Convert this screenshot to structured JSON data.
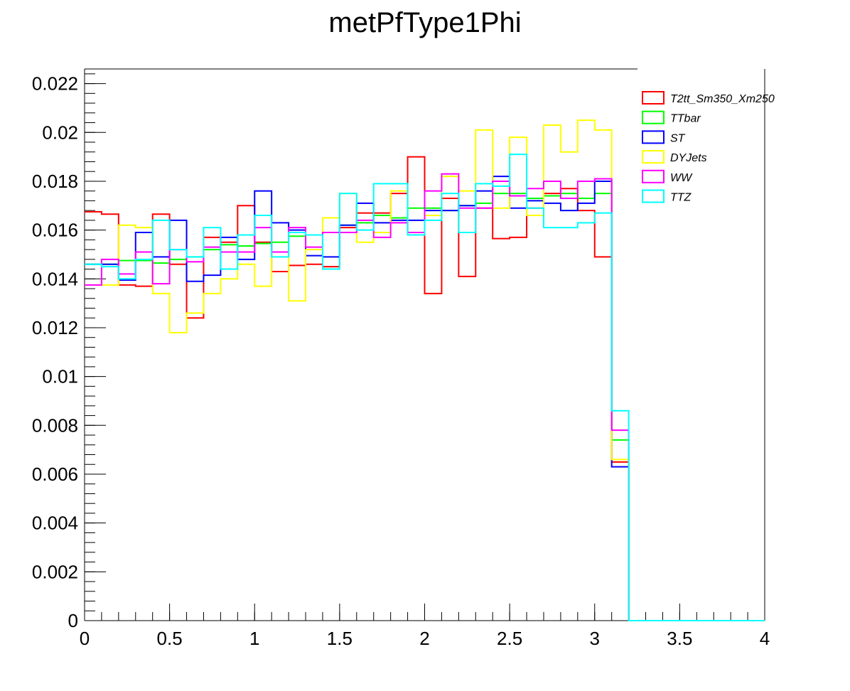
{
  "chart_data": {
    "type": "line",
    "title": "metPfType1Phi",
    "xlabel": "",
    "ylabel": "",
    "xlim": [
      0,
      4
    ],
    "ylim": [
      0,
      0.0226
    ],
    "grid": false,
    "legend_position": "top-right",
    "x_ticks": [
      "0",
      "0.5",
      "1",
      "1.5",
      "2",
      "2.5",
      "3",
      "3.5",
      "4"
    ],
    "y_ticks": [
      "0",
      "0.002",
      "0.004",
      "0.006",
      "0.008",
      "0.01",
      "0.012",
      "0.014",
      "0.016",
      "0.018",
      "0.02",
      "0.022"
    ],
    "bin_edges": [
      0,
      0.1,
      0.2,
      0.3,
      0.4,
      0.5,
      0.6,
      0.7,
      0.8,
      0.9,
      1.0,
      1.1,
      1.2,
      1.3,
      1.4,
      1.5,
      1.6,
      1.7,
      1.8,
      1.9,
      2.0,
      2.1,
      2.2,
      2.3,
      2.4,
      2.5,
      2.6,
      2.7,
      2.8,
      2.9,
      3.0,
      3.1,
      3.2,
      3.3,
      3.4,
      3.5,
      3.6,
      3.7,
      3.8,
      3.9,
      4.0
    ],
    "series": [
      {
        "name": "T2tt_Sm350_Xm250",
        "color": "#ff0000",
        "values": [
          0.01675,
          0.01665,
          0.01375,
          0.0137,
          0.01665,
          0.0146,
          0.0124,
          0.0157,
          0.0155,
          0.017,
          0.0155,
          0.0143,
          0.01455,
          0.0146,
          0.0145,
          0.0161,
          0.0167,
          0.0167,
          0.0175,
          0.019,
          0.0134,
          0.0173,
          0.0141,
          0.0169,
          0.01565,
          0.0157,
          0.0169,
          0.0175,
          0.0177,
          0.0168,
          0.0149,
          0.0065,
          0,
          0,
          0,
          0,
          0,
          0,
          0,
          0
        ]
      },
      {
        "name": "TTbar",
        "color": "#00ff00",
        "values": [
          0.0146,
          0.0146,
          0.01475,
          0.01475,
          0.01465,
          0.0148,
          0.0149,
          0.0152,
          0.0154,
          0.01535,
          0.01545,
          0.0155,
          0.01575,
          0.0158,
          0.0159,
          0.0162,
          0.0163,
          0.0166,
          0.0165,
          0.0169,
          0.0169,
          0.0168,
          0.017,
          0.0171,
          0.0175,
          0.0175,
          0.0173,
          0.0174,
          0.0175,
          0.0173,
          0.0175,
          0.0074,
          0,
          0,
          0,
          0,
          0,
          0,
          0,
          0
        ]
      },
      {
        "name": "ST",
        "color": "#0000ff",
        "values": [
          0.0146,
          0.0146,
          0.01395,
          0.0159,
          0.0149,
          0.0164,
          0.0139,
          0.01415,
          0.0157,
          0.0148,
          0.0176,
          0.0163,
          0.016,
          0.01495,
          0.0149,
          0.0162,
          0.0171,
          0.0163,
          0.0164,
          0.0164,
          0.0168,
          0.0168,
          0.017,
          0.0176,
          0.0182,
          0.0169,
          0.0172,
          0.0171,
          0.0168,
          0.0171,
          0.018,
          0.0063,
          0,
          0,
          0,
          0,
          0,
          0,
          0,
          0
        ]
      },
      {
        "name": "DYJets",
        "color": "#ffff00",
        "values": [
          0.01375,
          0.01375,
          0.0162,
          0.0161,
          0.0134,
          0.0118,
          0.0126,
          0.0134,
          0.014,
          0.0146,
          0.0137,
          0.0151,
          0.0131,
          0.0152,
          0.0165,
          0.0175,
          0.0155,
          0.0159,
          0.0176,
          0.0158,
          0.0166,
          0.0182,
          0.0176,
          0.0201,
          0.0169,
          0.0198,
          0.0166,
          0.0203,
          0.0192,
          0.0205,
          0.0201,
          0.0066,
          0,
          0,
          0,
          0,
          0,
          0,
          0,
          0
        ]
      },
      {
        "name": "WW",
        "color": "#ff00ff",
        "values": [
          0.01375,
          0.0148,
          0.0142,
          0.0151,
          0.0138,
          0.0152,
          0.0147,
          0.0153,
          0.0151,
          0.0151,
          0.0161,
          0.0151,
          0.0161,
          0.0153,
          0.0159,
          0.0159,
          0.0164,
          0.0157,
          0.0163,
          0.0159,
          0.0176,
          0.0183,
          0.0169,
          0.0169,
          0.018,
          0.0174,
          0.0177,
          0.018,
          0.0173,
          0.018,
          0.0181,
          0.0078,
          0,
          0,
          0,
          0,
          0,
          0,
          0,
          0
        ]
      },
      {
        "name": "TTZ",
        "color": "#00ffff",
        "values": [
          0.0146,
          0.0145,
          0.014,
          0.0148,
          0.0164,
          0.0152,
          0.0149,
          0.0161,
          0.0144,
          0.0158,
          0.0166,
          0.0149,
          0.0159,
          0.0158,
          0.0144,
          0.0175,
          0.016,
          0.0179,
          0.0179,
          0.0158,
          0.0164,
          0.0175,
          0.0159,
          0.0179,
          0.0178,
          0.0191,
          0.0169,
          0.0161,
          0.0161,
          0.0163,
          0.0167,
          0.0086,
          0,
          0,
          0,
          0,
          0,
          0,
          0,
          0
        ]
      }
    ]
  }
}
